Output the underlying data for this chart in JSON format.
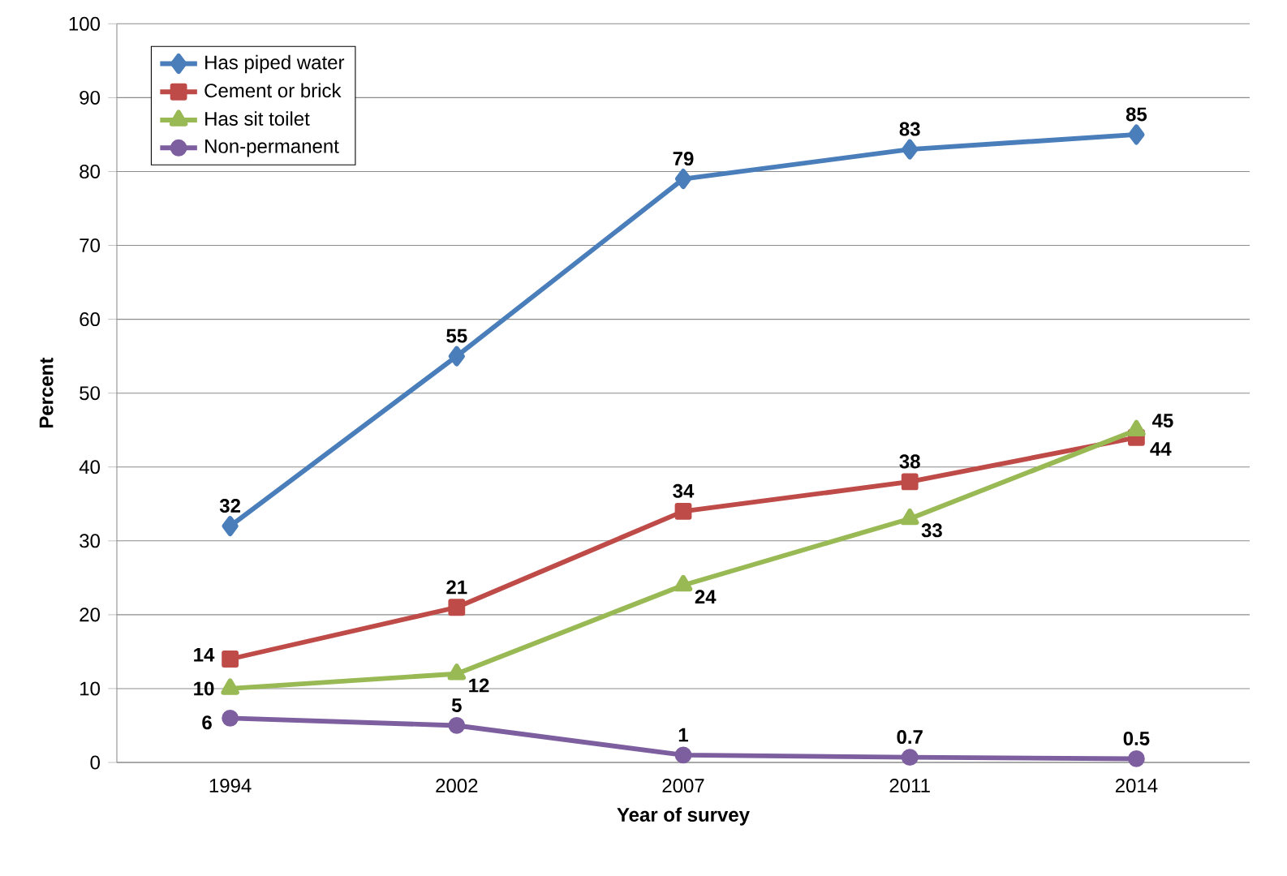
{
  "chart_data": {
    "type": "line",
    "xlabel": "Year of survey",
    "ylabel": "Percent",
    "categories": [
      "1994",
      "2002",
      "2007",
      "2011",
      "2014"
    ],
    "series": [
      {
        "name": "Has piped water",
        "color": "#4a7ebb",
        "marker": "diamond",
        "values": [
          32,
          55,
          79,
          83,
          85
        ]
      },
      {
        "name": "Cement or brick",
        "color": "#be4b48",
        "marker": "square",
        "values": [
          14,
          21,
          34,
          38,
          44
        ]
      },
      {
        "name": "Has sit toilet",
        "color": "#98b954",
        "marker": "triangle",
        "values": [
          10,
          12,
          24,
          33,
          45
        ]
      },
      {
        "name": "Non-permanent",
        "color": "#7d5fa0",
        "marker": "circle",
        "values": [
          6,
          5,
          1,
          0.7,
          0.5
        ]
      }
    ],
    "ylim": [
      0,
      100
    ],
    "yticks": [
      0,
      10,
      20,
      30,
      40,
      50,
      60,
      70,
      80,
      90,
      100
    ],
    "grid": "y",
    "legend": "top left",
    "line_style": "solid",
    "data_labels": true
  }
}
